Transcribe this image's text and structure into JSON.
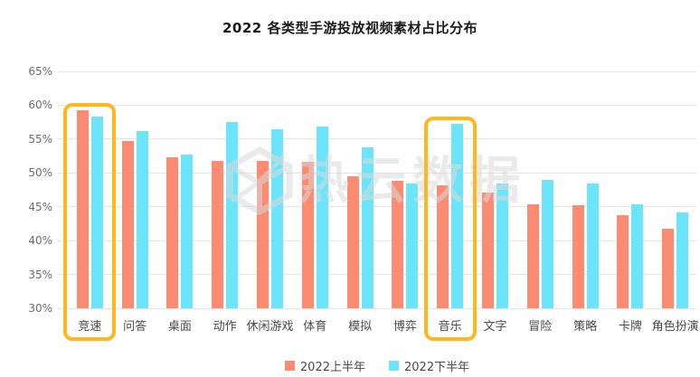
{
  "title": "2022 各类型手游投放视频素材占比分布",
  "watermark": {
    "text": "热云数据",
    "icon": "cube-logo-icon"
  },
  "legend": [
    {
      "label": "2022上半年",
      "color": "#fb8b72"
    },
    {
      "label": "2022下半年",
      "color": "#6ce5fb"
    }
  ],
  "chart_data": {
    "type": "bar",
    "title": "2022 各类型手游投放视频素材占比分布",
    "categories": [
      "竞速",
      "问答",
      "桌面",
      "动作",
      "休闲游戏",
      "体育",
      "模拟",
      "博弈",
      "音乐",
      "文字",
      "冒险",
      "策略",
      "卡牌",
      "角色扮演"
    ],
    "series": [
      {
        "name": "2022上半年",
        "color": "#fb8b72",
        "values": [
          59.3,
          54.7,
          52.3,
          51.8,
          51.8,
          51.6,
          49.5,
          48.9,
          48.2,
          47.1,
          45.4,
          45.2,
          43.7,
          41.7
        ]
      },
      {
        "name": "2022下半年",
        "color": "#6ce5fb",
        "values": [
          58.3,
          56.2,
          52.7,
          57.5,
          56.5,
          56.8,
          53.8,
          48.4,
          57.3,
          48.5,
          49.0,
          48.4,
          45.4,
          44.2
        ]
      }
    ],
    "xlabel": "",
    "ylabel": "",
    "ylim": [
      30,
      65
    ],
    "y_ticks": [
      {
        "label": "65%",
        "value": 65
      },
      {
        "label": "60%",
        "value": 60
      },
      {
        "label": "55%",
        "value": 55
      },
      {
        "label": "50%",
        "value": 50
      },
      {
        "label": "45%",
        "value": 45
      },
      {
        "label": "40%",
        "value": 40
      },
      {
        "label": "35%",
        "value": 35
      },
      {
        "label": "30%",
        "value": 30
      }
    ],
    "grid": "horizontal",
    "legend_position": "bottom",
    "highlighted_categories": [
      "竞速",
      "音乐"
    ],
    "highlight_color": "#ffb71c"
  }
}
